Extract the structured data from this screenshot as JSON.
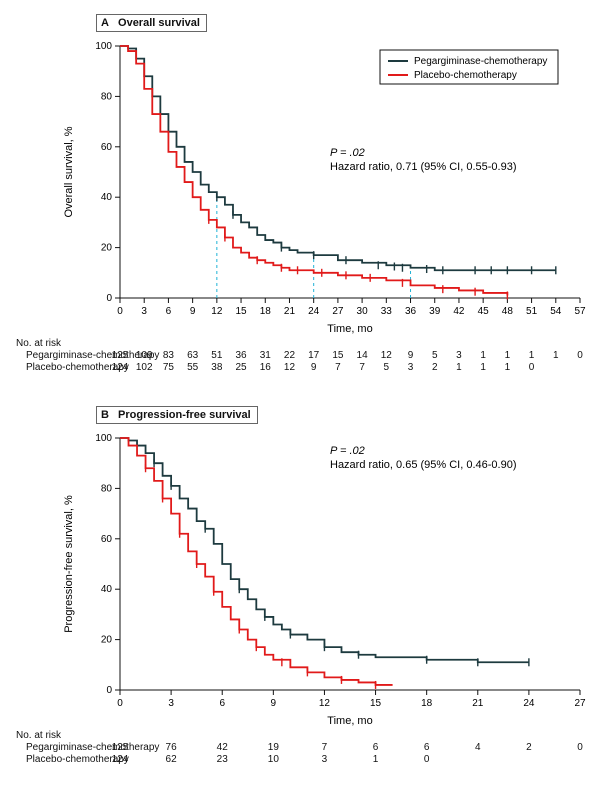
{
  "colors": {
    "series1": "#1d3a3f",
    "series2": "#e11a1a",
    "milestone": "#21b3d6",
    "axis": "#111111",
    "bg": "#ffffff"
  },
  "legend": {
    "items": [
      {
        "label": "Pegargiminase-chemotherapy",
        "color": "#1d3a3f"
      },
      {
        "label": "Placebo-chemotherapy",
        "color": "#e11a1a"
      }
    ]
  },
  "panelA": {
    "letter": "A",
    "title": "Overall survival",
    "xlabel": "Time, mo",
    "ylabel": "Overall survival, %",
    "xticks": [
      0,
      3,
      6,
      9,
      12,
      15,
      18,
      21,
      24,
      27,
      30,
      33,
      36,
      39,
      42,
      45,
      48,
      51,
      54,
      57
    ],
    "yticks": [
      0,
      20,
      40,
      60,
      80,
      100
    ],
    "xlim": [
      0,
      57
    ],
    "ylim": [
      0,
      100
    ],
    "milestones": [
      12,
      24,
      36
    ],
    "stats": {
      "p": "P = .02",
      "hr": "Hazard ratio, 0.71 (95% CI, 0.55-0.93)"
    },
    "series": [
      {
        "name": "Pegargiminase-chemotherapy",
        "color": "#1d3a3f",
        "points": [
          [
            0,
            100
          ],
          [
            1,
            99
          ],
          [
            2,
            95
          ],
          [
            3,
            88
          ],
          [
            4,
            80
          ],
          [
            5,
            73
          ],
          [
            6,
            66
          ],
          [
            7,
            60
          ],
          [
            8,
            54
          ],
          [
            9,
            50
          ],
          [
            10,
            45
          ],
          [
            11,
            42
          ],
          [
            12,
            40
          ],
          [
            13,
            37
          ],
          [
            14,
            33
          ],
          [
            15,
            30
          ],
          [
            16,
            28
          ],
          [
            17,
            25
          ],
          [
            18,
            23
          ],
          [
            19,
            22
          ],
          [
            20,
            20
          ],
          [
            21,
            19
          ],
          [
            22,
            18
          ],
          [
            24,
            17
          ],
          [
            27,
            15
          ],
          [
            30,
            14
          ],
          [
            33,
            13
          ],
          [
            36,
            12
          ],
          [
            39,
            11
          ],
          [
            42,
            11
          ],
          [
            45,
            11
          ],
          [
            48,
            11
          ],
          [
            51,
            11
          ],
          [
            54,
            11
          ]
        ],
        "censor": [
          [
            12,
            40
          ],
          [
            14,
            33
          ],
          [
            20,
            20
          ],
          [
            24,
            17
          ],
          [
            28,
            15
          ],
          [
            32,
            13
          ],
          [
            34,
            12.5
          ],
          [
            35,
            12
          ],
          [
            38,
            11.5
          ],
          [
            40,
            11
          ],
          [
            44,
            11
          ],
          [
            46,
            11
          ],
          [
            48,
            11
          ],
          [
            51,
            11
          ],
          [
            54,
            11
          ]
        ]
      },
      {
        "name": "Placebo-chemotherapy",
        "color": "#e11a1a",
        "points": [
          [
            0,
            100
          ],
          [
            1,
            98
          ],
          [
            2,
            93
          ],
          [
            3,
            83
          ],
          [
            4,
            73
          ],
          [
            5,
            66
          ],
          [
            6,
            58
          ],
          [
            7,
            52
          ],
          [
            8,
            46
          ],
          [
            9,
            40
          ],
          [
            10,
            35
          ],
          [
            11,
            31
          ],
          [
            12,
            28
          ],
          [
            13,
            24
          ],
          [
            14,
            20
          ],
          [
            15,
            18
          ],
          [
            16,
            16
          ],
          [
            17,
            15
          ],
          [
            18,
            14
          ],
          [
            19,
            13
          ],
          [
            20,
            12
          ],
          [
            21,
            11
          ],
          [
            24,
            10
          ],
          [
            27,
            9
          ],
          [
            30,
            8
          ],
          [
            33,
            7
          ],
          [
            36,
            5
          ],
          [
            39,
            4
          ],
          [
            42,
            3
          ],
          [
            45,
            2
          ],
          [
            48,
            1
          ]
        ],
        "censor": [
          [
            11,
            31
          ],
          [
            13,
            24
          ],
          [
            17,
            15
          ],
          [
            20,
            12
          ],
          [
            22,
            11
          ],
          [
            25,
            10
          ],
          [
            28,
            9
          ],
          [
            31,
            8
          ],
          [
            35,
            6
          ],
          [
            40,
            3.5
          ],
          [
            44,
            2.5
          ],
          [
            48,
            1
          ]
        ]
      }
    ],
    "risk": {
      "header": "No. at risk",
      "labels": [
        "Pegargiminase-chemotherapy",
        "Placebo-chemotherapy"
      ],
      "x": [
        0,
        3,
        6,
        9,
        12,
        15,
        18,
        21,
        24,
        27,
        30,
        33,
        36,
        39,
        42,
        45,
        48,
        51,
        54,
        57
      ],
      "rows": [
        [
          "125",
          "109",
          "83",
          "63",
          "51",
          "36",
          "31",
          "22",
          "17",
          "15",
          "14",
          "12",
          "9",
          "5",
          "3",
          "1",
          "1",
          "1",
          "1",
          "0"
        ],
        [
          "124",
          "102",
          "75",
          "55",
          "38",
          "25",
          "16",
          "12",
          "9",
          "7",
          "7",
          "5",
          "3",
          "2",
          "1",
          "1",
          "1",
          "0",
          "",
          ""
        ]
      ]
    }
  },
  "panelB": {
    "letter": "B",
    "title": "Progression-free survival",
    "xlabel": "Time, mo",
    "ylabel": "Progression-free survival, %",
    "xticks": [
      0,
      3,
      6,
      9,
      12,
      15,
      18,
      21,
      24,
      27
    ],
    "yticks": [
      0,
      20,
      40,
      60,
      80,
      100
    ],
    "xlim": [
      0,
      27
    ],
    "ylim": [
      0,
      100
    ],
    "stats": {
      "p": "P = .02",
      "hr": "Hazard ratio, 0.65 (95% CI, 0.46-0.90)"
    },
    "series": [
      {
        "name": "Pegargiminase-chemotherapy",
        "color": "#1d3a3f",
        "points": [
          [
            0,
            100
          ],
          [
            0.5,
            99
          ],
          [
            1,
            97
          ],
          [
            1.5,
            94
          ],
          [
            2,
            90
          ],
          [
            2.5,
            85
          ],
          [
            3,
            81
          ],
          [
            3.5,
            76
          ],
          [
            4,
            72
          ],
          [
            4.5,
            67
          ],
          [
            5,
            64
          ],
          [
            5.5,
            58
          ],
          [
            6,
            50
          ],
          [
            6.5,
            44
          ],
          [
            7,
            40
          ],
          [
            7.5,
            36
          ],
          [
            8,
            32
          ],
          [
            8.5,
            29
          ],
          [
            9,
            26
          ],
          [
            9.5,
            24
          ],
          [
            10,
            22
          ],
          [
            11,
            20
          ],
          [
            12,
            17
          ],
          [
            13,
            15
          ],
          [
            14,
            14
          ],
          [
            15,
            13
          ],
          [
            16,
            13
          ],
          [
            18,
            12
          ],
          [
            21,
            11
          ],
          [
            24,
            11
          ]
        ],
        "censor": [
          [
            2,
            90
          ],
          [
            3,
            81
          ],
          [
            5,
            64
          ],
          [
            7,
            40
          ],
          [
            8.5,
            29
          ],
          [
            10,
            22
          ],
          [
            12,
            17
          ],
          [
            14,
            14
          ],
          [
            18,
            12
          ],
          [
            21,
            11
          ],
          [
            24,
            11
          ]
        ]
      },
      {
        "name": "Placebo-chemotherapy",
        "color": "#e11a1a",
        "points": [
          [
            0,
            100
          ],
          [
            0.5,
            97
          ],
          [
            1,
            93
          ],
          [
            1.5,
            88
          ],
          [
            2,
            83
          ],
          [
            2.5,
            76
          ],
          [
            3,
            70
          ],
          [
            3.5,
            62
          ],
          [
            4,
            55
          ],
          [
            4.5,
            50
          ],
          [
            5,
            45
          ],
          [
            5.5,
            39
          ],
          [
            6,
            33
          ],
          [
            6.5,
            28
          ],
          [
            7,
            24
          ],
          [
            7.5,
            20
          ],
          [
            8,
            17
          ],
          [
            8.5,
            14
          ],
          [
            9,
            12
          ],
          [
            10,
            9
          ],
          [
            11,
            7
          ],
          [
            12,
            5
          ],
          [
            13,
            4
          ],
          [
            14,
            3
          ],
          [
            15,
            2
          ],
          [
            16,
            2
          ]
        ],
        "censor": [
          [
            1.5,
            88
          ],
          [
            2.5,
            76
          ],
          [
            3.5,
            62
          ],
          [
            4.5,
            50
          ],
          [
            5.5,
            39
          ],
          [
            7,
            24
          ],
          [
            8,
            17
          ],
          [
            9.5,
            11
          ],
          [
            11,
            7
          ],
          [
            13,
            4
          ],
          [
            15,
            2
          ]
        ]
      }
    ],
    "risk": {
      "header": "No. at risk",
      "labels": [
        "Pegargiminase-chemotherapy",
        "Placebo-chemotherapy"
      ],
      "x": [
        0,
        3,
        6,
        9,
        12,
        15,
        18,
        21,
        24,
        27
      ],
      "rows": [
        [
          "125",
          "76",
          "42",
          "19",
          "7",
          "6",
          "6",
          "4",
          "2",
          "0"
        ],
        [
          "124",
          "62",
          "23",
          "10",
          "3",
          "1",
          "0",
          "",
          "",
          ""
        ]
      ]
    }
  }
}
